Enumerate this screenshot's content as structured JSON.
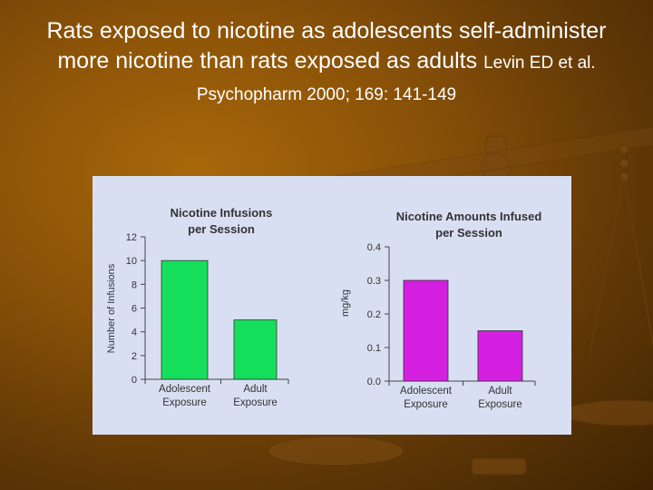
{
  "slide": {
    "title": "Rats exposed to nicotine as adolescents self-administer more nicotine than rats exposed as adults",
    "reference": "Levin ED et al. Psychopharm 2000; 169: 141-149"
  },
  "colors": {
    "background": "#8a5208",
    "panel": "#d9dff2",
    "infusions_bar": "#15df5a",
    "amounts_bar": "#d41fe0"
  },
  "chart_data": [
    {
      "type": "bar",
      "title_lines": [
        "Nicotine Infusions",
        "per Session"
      ],
      "xlabel": "",
      "ylabel": "Number of Infusions",
      "categories": [
        [
          "Adolescent",
          "Exposure"
        ],
        [
          "Adult",
          "Exposure"
        ]
      ],
      "values": [
        10,
        5
      ],
      "ylim": [
        0,
        12
      ],
      "yticks": [
        "0",
        "2",
        "4",
        "6",
        "8",
        "10",
        "12"
      ],
      "grid": false
    },
    {
      "type": "bar",
      "title_lines": [
        "Nicotine Amounts Infused",
        "per Session"
      ],
      "xlabel": "",
      "ylabel": "mg/kg",
      "categories": [
        [
          "Adolescent",
          "Exposure"
        ],
        [
          "Adult",
          "Exposure"
        ]
      ],
      "values": [
        0.3,
        0.15
      ],
      "ylim": [
        0,
        0.4
      ],
      "yticks": [
        "0.0",
        "0.1",
        "0.2",
        "0.3",
        "0.4"
      ],
      "grid": false
    }
  ]
}
